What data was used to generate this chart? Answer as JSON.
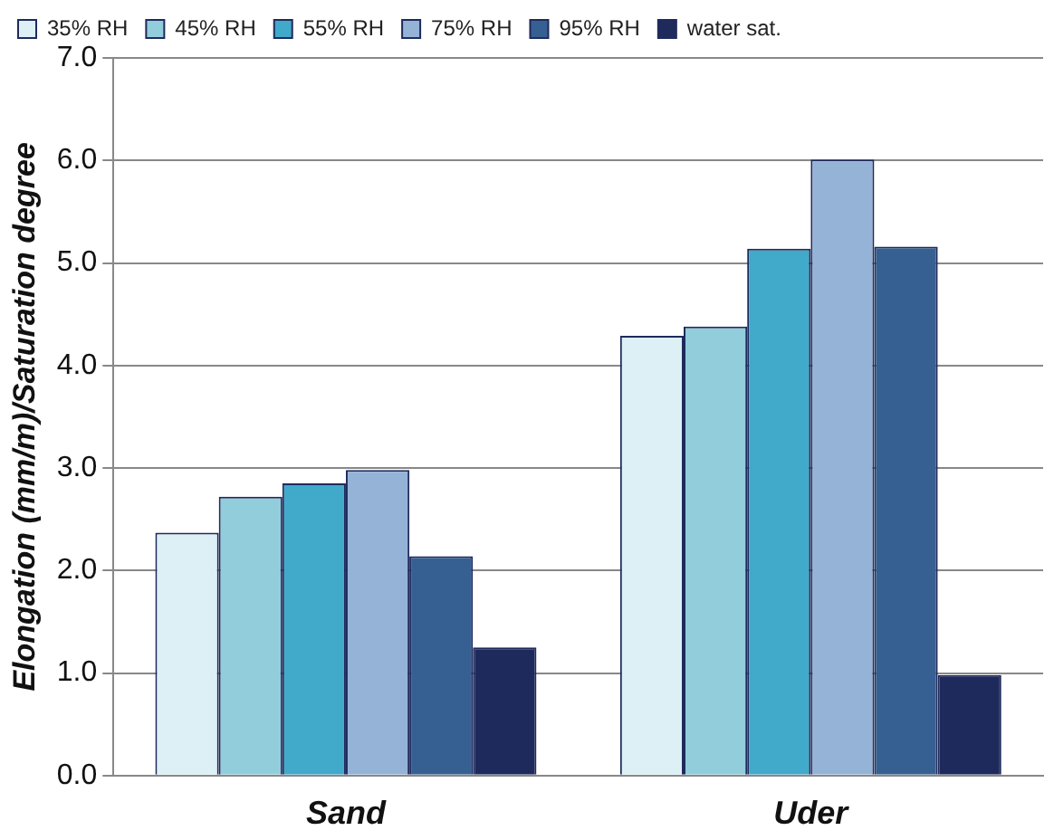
{
  "chart_data": {
    "type": "bar",
    "ylabel": "Elongation (mm/m)/Saturation degree",
    "categories": [
      "Sand",
      "Uder"
    ],
    "series": [
      {
        "name": "35% RH",
        "color": "#dcf0f6",
        "values": [
          2.37,
          4.29
        ]
      },
      {
        "name": "45% RH",
        "color": "#92cddc",
        "values": [
          2.72,
          4.38
        ]
      },
      {
        "name": "55% RH",
        "color": "#41a9c9",
        "values": [
          2.85,
          5.14
        ]
      },
      {
        "name": "75% RH",
        "color": "#95b3d7",
        "values": [
          2.98,
          6.01
        ]
      },
      {
        "name": "95% RH",
        "color": "#376092",
        "values": [
          2.14,
          5.16
        ]
      },
      {
        "name": "water sat.",
        "color": "#1f2a5c",
        "values": [
          1.25,
          0.98
        ]
      }
    ],
    "ylim": [
      0,
      7
    ],
    "yticks": [
      {
        "value": 0,
        "label": "0.0"
      },
      {
        "value": 1,
        "label": "1.0"
      },
      {
        "value": 2,
        "label": "2.0"
      },
      {
        "value": 3,
        "label": "3.0"
      },
      {
        "value": 4,
        "label": "4.0"
      },
      {
        "value": 5,
        "label": "5.0"
      },
      {
        "value": 6,
        "label": "6.0"
      },
      {
        "value": 7,
        "label": "7.0"
      }
    ],
    "grid": "y",
    "legend": "top"
  }
}
